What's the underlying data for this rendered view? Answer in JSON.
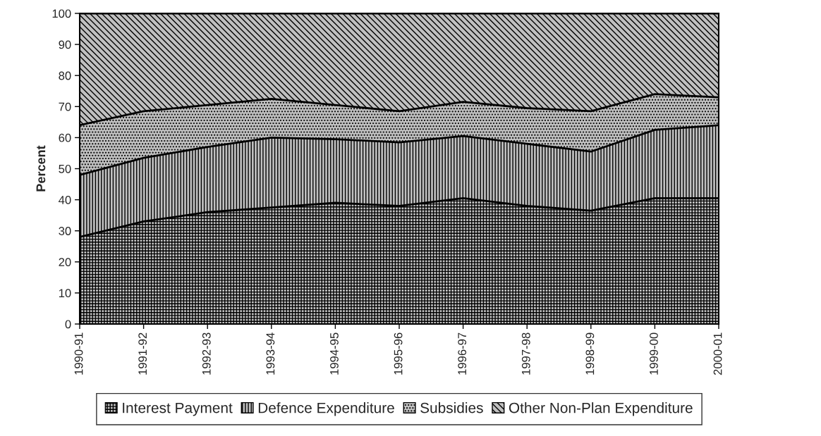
{
  "chart_data": {
    "type": "area",
    "stacked": true,
    "ylabel": "Percent",
    "categories": [
      "1990-91",
      "1991-92",
      "1992-93",
      "1993-94",
      "1994-95",
      "1995-96",
      "1996-97",
      "1997-98",
      "1998-99",
      "1999-00",
      "2000-01"
    ],
    "series": [
      {
        "name": "Interest Payment",
        "color": "#c0c0c0",
        "values": [
          28,
          33,
          36,
          37.5,
          39,
          38,
          40.5,
          38,
          36.5,
          40.5,
          40.5
        ]
      },
      {
        "name": "Defence Expenditure",
        "color": "#c0c0c0",
        "values": [
          20,
          20.5,
          21,
          22.5,
          20.5,
          20.5,
          20,
          20,
          19,
          22,
          23.5
        ]
      },
      {
        "name": "Subsidies",
        "color": "#c0c0c0",
        "values": [
          16,
          15,
          13.5,
          12.5,
          11,
          10,
          11,
          11.5,
          13,
          11.5,
          9
        ]
      },
      {
        "name": "Other Non-Plan Expenditure",
        "color": "#c0c0c0",
        "values": [
          36,
          31.5,
          29.5,
          27.5,
          29.5,
          31.5,
          28.5,
          30.5,
          31.5,
          26,
          27
        ]
      }
    ],
    "ylim": [
      0,
      100
    ],
    "yticks": [
      0,
      10,
      20,
      30,
      40,
      50,
      60,
      70,
      80,
      90,
      100
    ],
    "legend": "bottom"
  }
}
